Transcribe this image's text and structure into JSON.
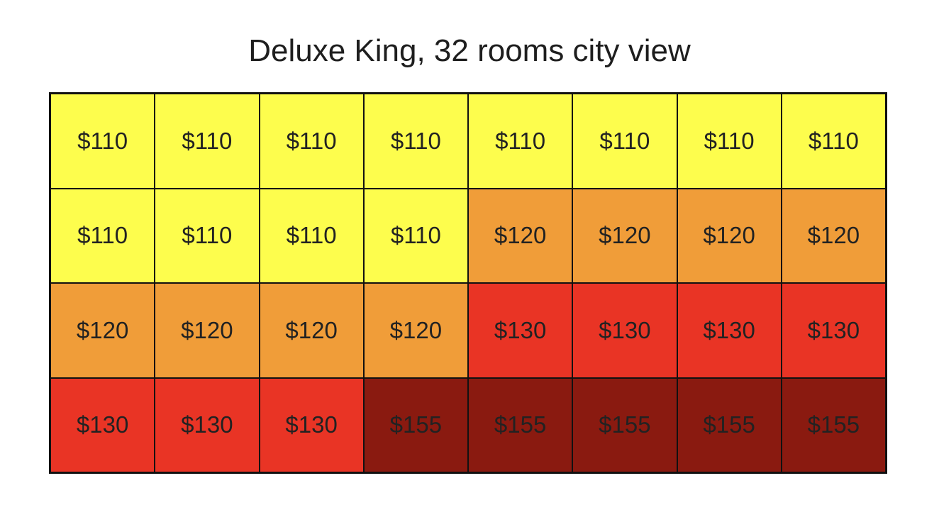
{
  "chart_data": {
    "type": "heatmap",
    "title": "Deluxe King, 32 rooms city view",
    "rows": 4,
    "cols": 8,
    "values": [
      [
        110,
        110,
        110,
        110,
        110,
        110,
        110,
        110
      ],
      [
        110,
        110,
        110,
        110,
        120,
        120,
        120,
        120
      ],
      [
        120,
        120,
        120,
        120,
        130,
        130,
        130,
        130
      ],
      [
        130,
        130,
        130,
        155,
        155,
        155,
        155,
        155
      ]
    ],
    "labels": [
      [
        "$110",
        "$110",
        "$110",
        "$110",
        "$110",
        "$110",
        "$110",
        "$110"
      ],
      [
        "$110",
        "$110",
        "$110",
        "$110",
        "$120",
        "$120",
        "$120",
        "$120"
      ],
      [
        "$120",
        "$120",
        "$120",
        "$120",
        "$130",
        "$130",
        "$130",
        "$130"
      ],
      [
        "$130",
        "$130",
        "$130",
        "$155",
        "$155",
        "$155",
        "$155",
        "$155"
      ]
    ],
    "colors": {
      "110": "#fdfd4d",
      "120": "#f09d39",
      "130": "#e93425",
      "155": "#8a1a10"
    }
  }
}
